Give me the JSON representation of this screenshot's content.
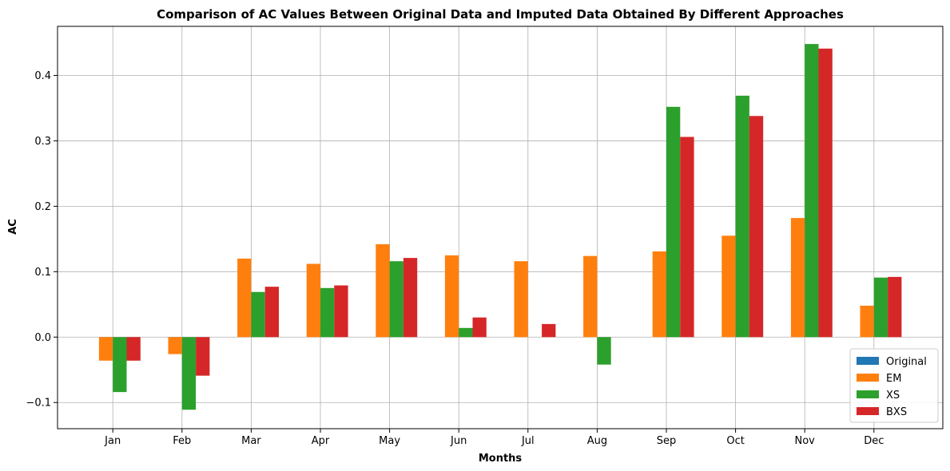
{
  "chart_data": {
    "type": "bar",
    "title": "Comparison of AC Values Between Original Data and Imputed Data Obtained By Different Approaches",
    "xlabel": "Months",
    "ylabel": "AC",
    "categories": [
      "Jan",
      "Feb",
      "Mar",
      "Apr",
      "May",
      "Jun",
      "Jul",
      "Aug",
      "Sep",
      "Oct",
      "Nov",
      "Dec"
    ],
    "series": [
      {
        "name": "Original",
        "color": "#1f77b4",
        "values": [
          0,
          0,
          0,
          0,
          0,
          0,
          0,
          0,
          0,
          0,
          0,
          0
        ]
      },
      {
        "name": "EM",
        "color": "#ff7f0e",
        "values": [
          -0.036,
          -0.026,
          0.12,
          0.112,
          0.142,
          0.125,
          0.116,
          0.124,
          0.131,
          0.155,
          0.182,
          0.048
        ]
      },
      {
        "name": "XS",
        "color": "#2ca02c",
        "values": [
          -0.084,
          -0.111,
          0.069,
          0.075,
          0.116,
          0.014,
          0.0,
          -0.042,
          0.352,
          0.369,
          0.448,
          0.091
        ]
      },
      {
        "name": "BXS",
        "color": "#d62728",
        "values": [
          -0.036,
          -0.059,
          0.077,
          0.079,
          0.121,
          0.03,
          0.02,
          0.0,
          0.306,
          0.338,
          0.441,
          0.092
        ]
      }
    ],
    "ylim": [
      -0.14,
      0.475
    ],
    "yticks": [
      -0.1,
      0.0,
      0.1,
      0.2,
      0.3,
      0.4
    ],
    "ytick_labels": [
      "−0.1",
      "0.0",
      "0.1",
      "0.2",
      "0.3",
      "0.4"
    ],
    "grid": true,
    "legend_position": "lower-right"
  }
}
